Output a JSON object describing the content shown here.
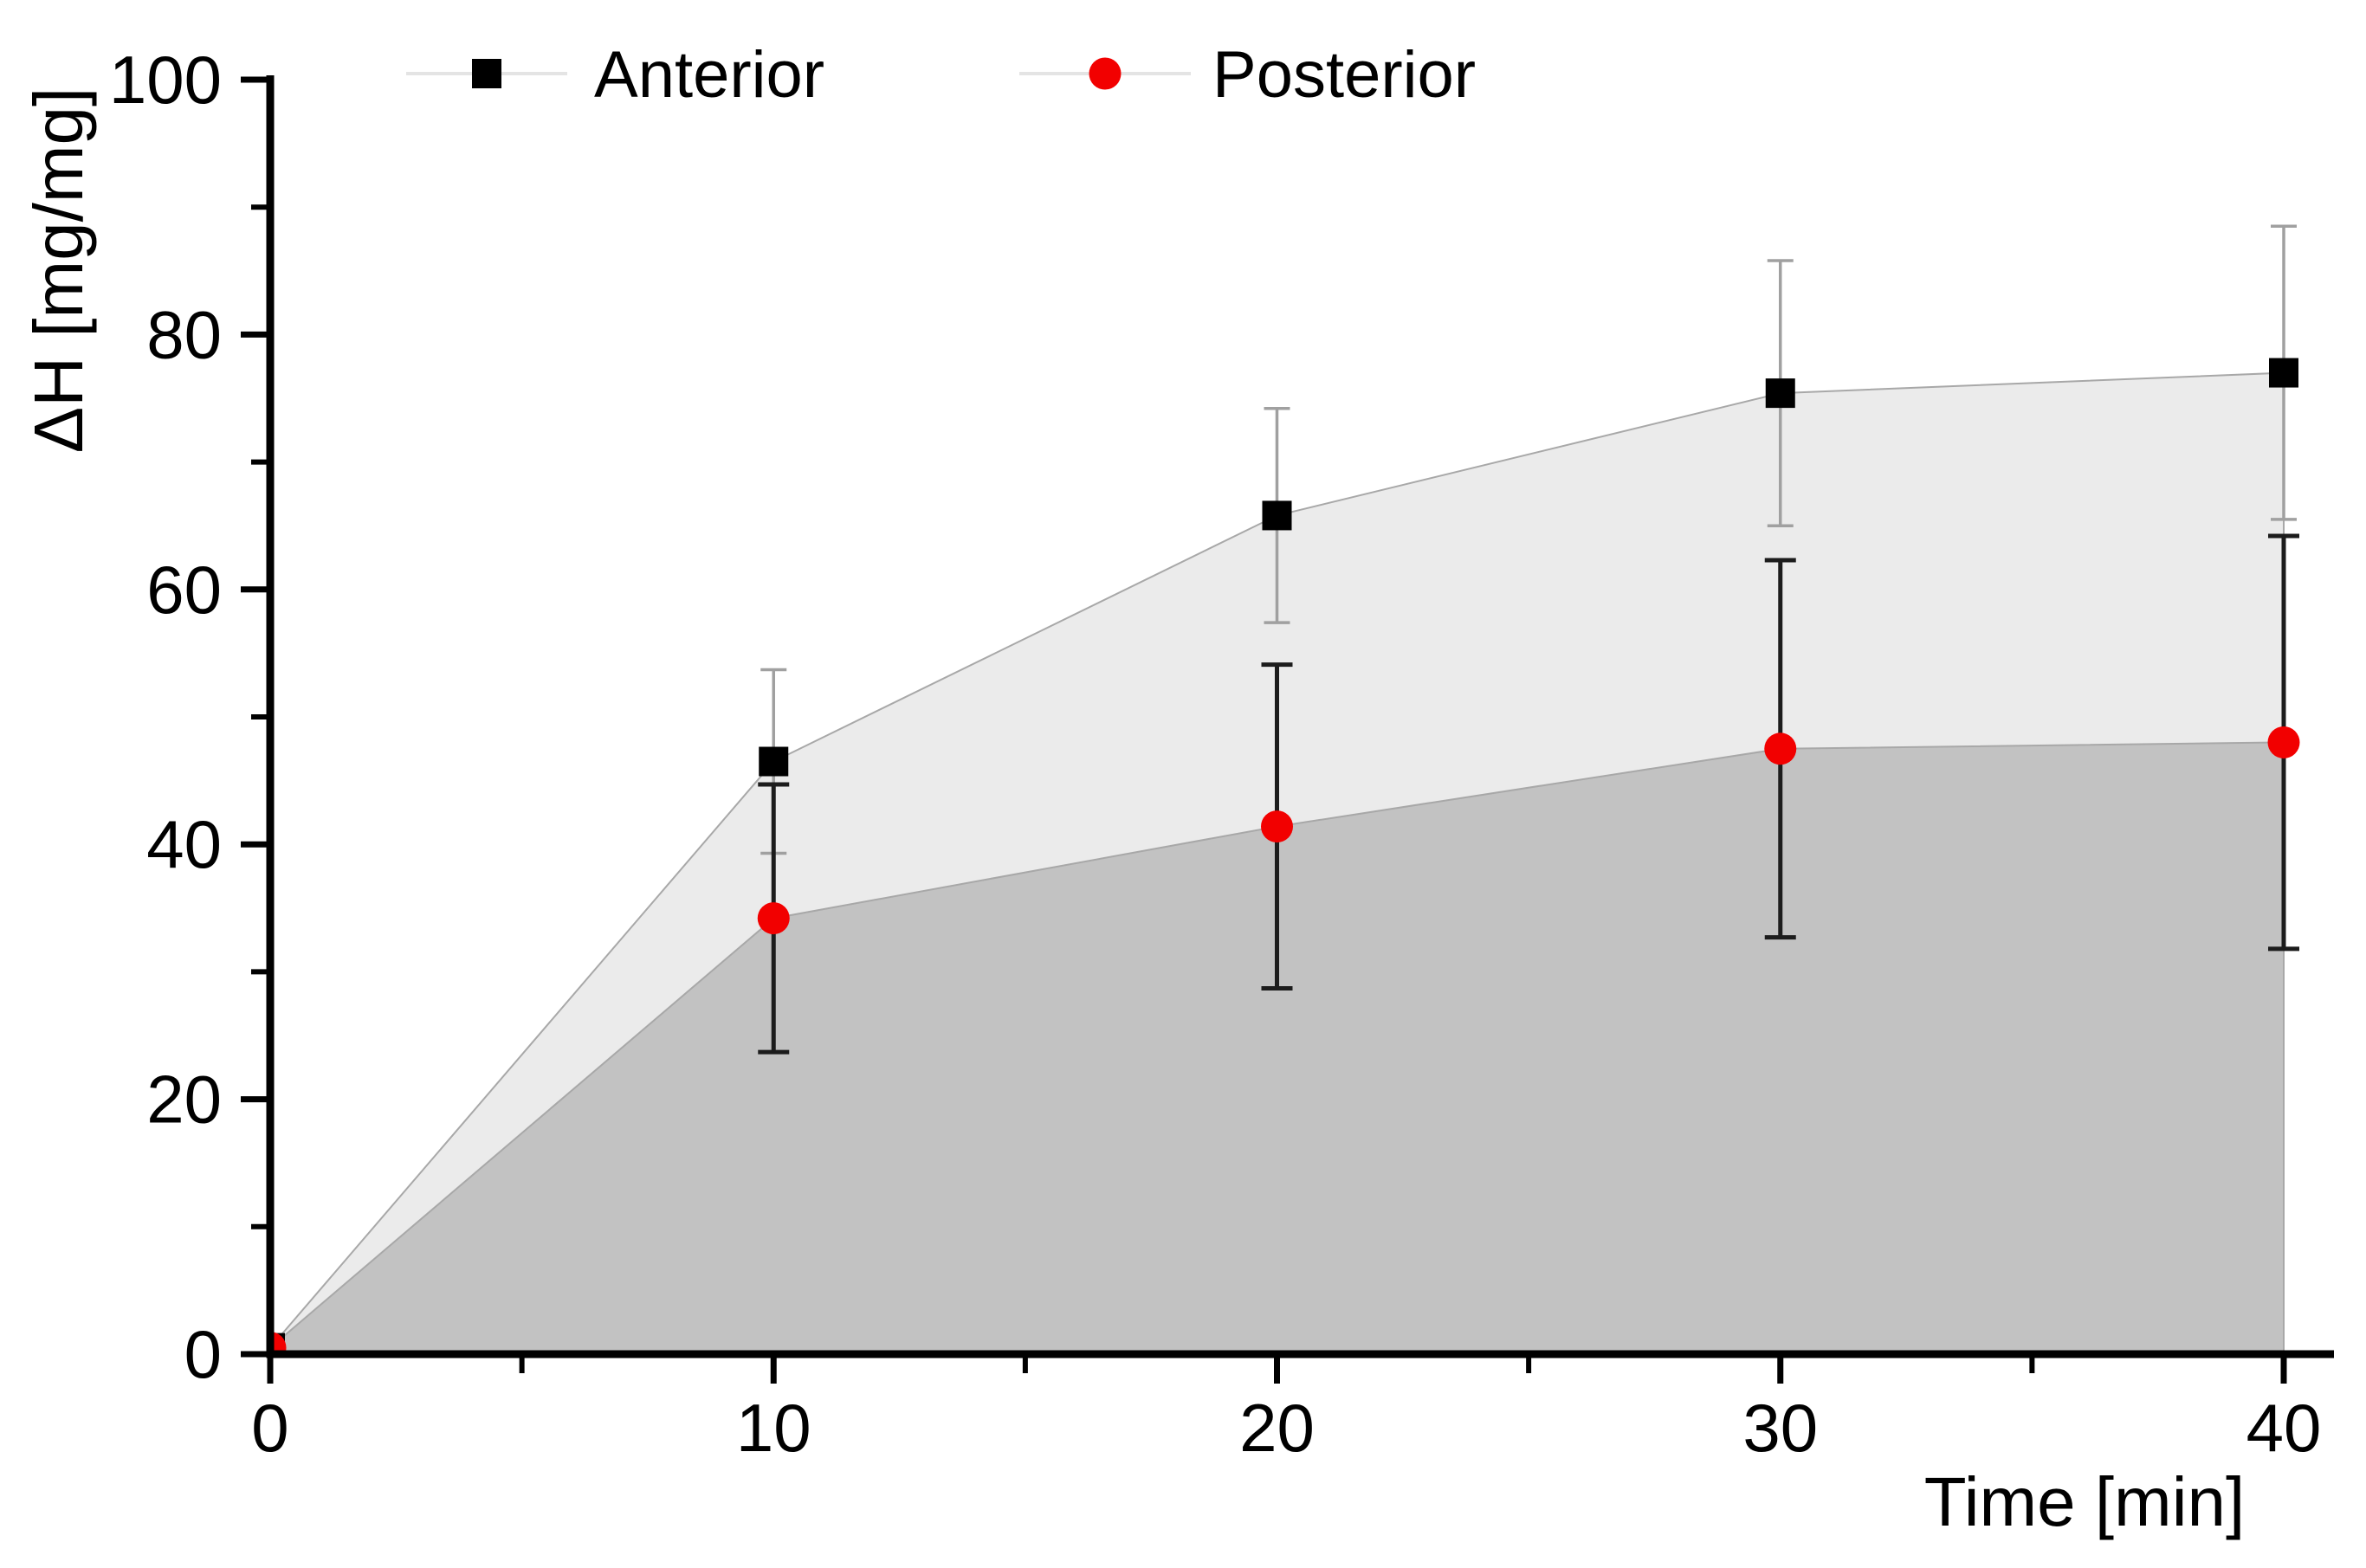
{
  "chart_data": {
    "type": "scatter",
    "title": "",
    "xlabel": "Time [min]",
    "ylabel": "ΔH [mg/mg]",
    "xlim": [
      0,
      40
    ],
    "ylim": [
      0,
      100
    ],
    "x_ticks": [
      0,
      10,
      20,
      30,
      40
    ],
    "x_minor_ticks": [
      5,
      15,
      25,
      35
    ],
    "y_ticks": [
      0,
      20,
      40,
      60,
      80,
      100
    ],
    "y_minor_ticks": [
      10,
      30,
      50,
      70,
      90
    ],
    "grid": "off",
    "legend_position": "top",
    "x": [
      0,
      10,
      20,
      30,
      40
    ],
    "series": [
      {
        "name": "Anterior",
        "marker": "square",
        "color": "#000000",
        "error_color": "#a0a0a0",
        "area_fill": "#ebebeb",
        "values": [
          0.5,
          46.5,
          65.8,
          75.4,
          77.0
        ],
        "errors": [
          0,
          7.2,
          8.4,
          10.4,
          11.5
        ]
      },
      {
        "name": "Posterior",
        "marker": "circle",
        "color": "#f20000",
        "error_color": "#1c1c1c",
        "area_fill": "#c2c2c2",
        "values": [
          0.5,
          34.2,
          41.4,
          47.5,
          48.0
        ],
        "errors": [
          0,
          10.5,
          12.7,
          14.8,
          16.2
        ]
      }
    ],
    "area_edge_color": "#a8a8a8",
    "legend": [
      {
        "label": "Anterior"
      },
      {
        "label": "Posterior"
      }
    ],
    "legend_line_color": "#e4e4e4"
  }
}
